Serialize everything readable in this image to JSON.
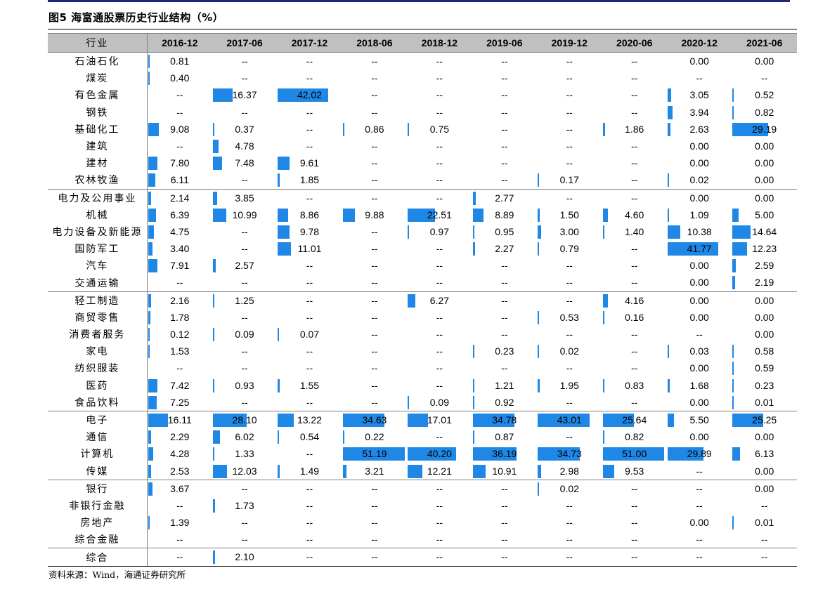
{
  "title": "图5  海富通股票历史行业结构（%）",
  "source": "资料来源：Wind，海通证券研究所",
  "colors": {
    "bar": "#1f87e5",
    "header_bg": "#c0c0c0",
    "top_rule": "#1a2a7a"
  },
  "table": {
    "header_industry": "行业",
    "periods": [
      "2016-12",
      "2017-06",
      "2017-12",
      "2018-06",
      "2018-12",
      "2019-06",
      "2019-12",
      "2020-06",
      "2020-12",
      "2021-06"
    ],
    "rows": [
      {
        "name": "石油石化",
        "values": [
          "0.81",
          "--",
          "--",
          "--",
          "--",
          "--",
          "--",
          "--",
          "0.00",
          "0.00"
        ],
        "group_end": false
      },
      {
        "name": "煤炭",
        "values": [
          "0.40",
          "--",
          "--",
          "--",
          "--",
          "--",
          "--",
          "--",
          "--",
          "--"
        ],
        "group_end": false
      },
      {
        "name": "有色金属",
        "values": [
          "--",
          "16.37",
          "42.02",
          "--",
          "--",
          "--",
          "--",
          "--",
          "3.05",
          "0.52"
        ],
        "group_end": false
      },
      {
        "name": "钢铁",
        "values": [
          "--",
          "--",
          "--",
          "--",
          "--",
          "--",
          "--",
          "--",
          "3.94",
          "0.82"
        ],
        "group_end": false
      },
      {
        "name": "基础化工",
        "values": [
          "9.08",
          "0.37",
          "--",
          "0.86",
          "0.75",
          "--",
          "--",
          "1.86",
          "2.63",
          "29.19"
        ],
        "group_end": false
      },
      {
        "name": "建筑",
        "values": [
          "--",
          "4.78",
          "--",
          "--",
          "--",
          "--",
          "--",
          "--",
          "0.00",
          "0.00"
        ],
        "group_end": false
      },
      {
        "name": "建材",
        "values": [
          "7.80",
          "7.48",
          "9.61",
          "--",
          "--",
          "--",
          "--",
          "--",
          "0.00",
          "0.00"
        ],
        "group_end": false
      },
      {
        "name": "农林牧渔",
        "values": [
          "6.11",
          "--",
          "1.85",
          "--",
          "--",
          "--",
          "0.17",
          "--",
          "0.02",
          "0.00"
        ],
        "group_end": true
      },
      {
        "name": "电力及公用事业",
        "values": [
          "2.14",
          "3.85",
          "--",
          "--",
          "--",
          "2.77",
          "--",
          "--",
          "0.00",
          "0.00"
        ],
        "group_end": false
      },
      {
        "name": "机械",
        "values": [
          "6.39",
          "10.99",
          "8.86",
          "9.88",
          "22.51",
          "8.89",
          "1.50",
          "4.60",
          "1.09",
          "5.00"
        ],
        "group_end": false
      },
      {
        "name": "电力设备及新能源",
        "values": [
          "4.75",
          "--",
          "9.78",
          "--",
          "0.97",
          "0.95",
          "3.00",
          "1.40",
          "10.38",
          "14.64"
        ],
        "group_end": false
      },
      {
        "name": "国防军工",
        "values": [
          "3.40",
          "--",
          "11.01",
          "--",
          "--",
          "2.27",
          "0.79",
          "--",
          "41.77",
          "12.23"
        ],
        "group_end": false
      },
      {
        "name": "汽车",
        "values": [
          "7.91",
          "2.57",
          "--",
          "--",
          "--",
          "--",
          "--",
          "--",
          "0.00",
          "2.59"
        ],
        "group_end": false
      },
      {
        "name": "交通运输",
        "values": [
          "--",
          "--",
          "--",
          "--",
          "--",
          "--",
          "--",
          "--",
          "0.00",
          "2.19"
        ],
        "group_end": true
      },
      {
        "name": "轻工制造",
        "values": [
          "2.16",
          "1.25",
          "--",
          "--",
          "6.27",
          "--",
          "--",
          "4.16",
          "0.00",
          "0.00"
        ],
        "group_end": false
      },
      {
        "name": "商贸零售",
        "values": [
          "1.78",
          "--",
          "--",
          "--",
          "--",
          "--",
          "0.53",
          "0.16",
          "0.00",
          "0.00"
        ],
        "group_end": false
      },
      {
        "name": "消费者服务",
        "values": [
          "0.12",
          "0.09",
          "0.07",
          "--",
          "--",
          "--",
          "--",
          "--",
          "--",
          "0.00"
        ],
        "group_end": false
      },
      {
        "name": "家电",
        "values": [
          "1.53",
          "--",
          "--",
          "--",
          "--",
          "0.23",
          "0.02",
          "--",
          "0.03",
          "0.58"
        ],
        "group_end": false
      },
      {
        "name": "纺织服装",
        "values": [
          "--",
          "--",
          "--",
          "--",
          "--",
          "--",
          "--",
          "--",
          "0.00",
          "0.59"
        ],
        "group_end": false
      },
      {
        "name": "医药",
        "values": [
          "7.42",
          "0.93",
          "1.55",
          "--",
          "--",
          "1.21",
          "1.95",
          "0.83",
          "1.68",
          "0.23"
        ],
        "group_end": false
      },
      {
        "name": "食品饮料",
        "values": [
          "7.25",
          "--",
          "--",
          "--",
          "0.09",
          "0.92",
          "--",
          "--",
          "0.00",
          "0.01"
        ],
        "group_end": true
      },
      {
        "name": "电子",
        "values": [
          "16.11",
          "28.10",
          "13.22",
          "34.63",
          "17.01",
          "34.78",
          "43.01",
          "25.64",
          "5.50",
          "25.25"
        ],
        "group_end": false
      },
      {
        "name": "通信",
        "values": [
          "2.29",
          "6.02",
          "0.54",
          "0.22",
          "--",
          "0.87",
          "--",
          "0.82",
          "0.00",
          "0.00"
        ],
        "group_end": false
      },
      {
        "name": "计算机",
        "values": [
          "4.28",
          "1.33",
          "--",
          "51.19",
          "40.20",
          "36.19",
          "34.73",
          "51.00",
          "29.89",
          "6.13"
        ],
        "group_end": false
      },
      {
        "name": "传媒",
        "values": [
          "2.53",
          "12.03",
          "1.49",
          "3.21",
          "12.21",
          "10.91",
          "2.98",
          "9.53",
          "--",
          "0.00"
        ],
        "group_end": true
      },
      {
        "name": "银行",
        "values": [
          "3.67",
          "--",
          "--",
          "--",
          "--",
          "--",
          "0.02",
          "--",
          "--",
          "0.00"
        ],
        "group_end": false
      },
      {
        "name": "非银行金融",
        "values": [
          "--",
          "1.73",
          "--",
          "--",
          "--",
          "--",
          "--",
          "--",
          "--",
          "--"
        ],
        "group_end": false
      },
      {
        "name": "房地产",
        "values": [
          "1.39",
          "--",
          "--",
          "--",
          "--",
          "--",
          "--",
          "--",
          "0.00",
          "0.01"
        ],
        "group_end": false
      },
      {
        "name": "综合金融",
        "values": [
          "--",
          "--",
          "--",
          "--",
          "--",
          "--",
          "--",
          "--",
          "--",
          "--"
        ],
        "group_end": true
      },
      {
        "name": "综合",
        "values": [
          "--",
          "2.10",
          "--",
          "--",
          "--",
          "--",
          "--",
          "--",
          "--",
          "--"
        ],
        "group_end": true
      }
    ]
  }
}
